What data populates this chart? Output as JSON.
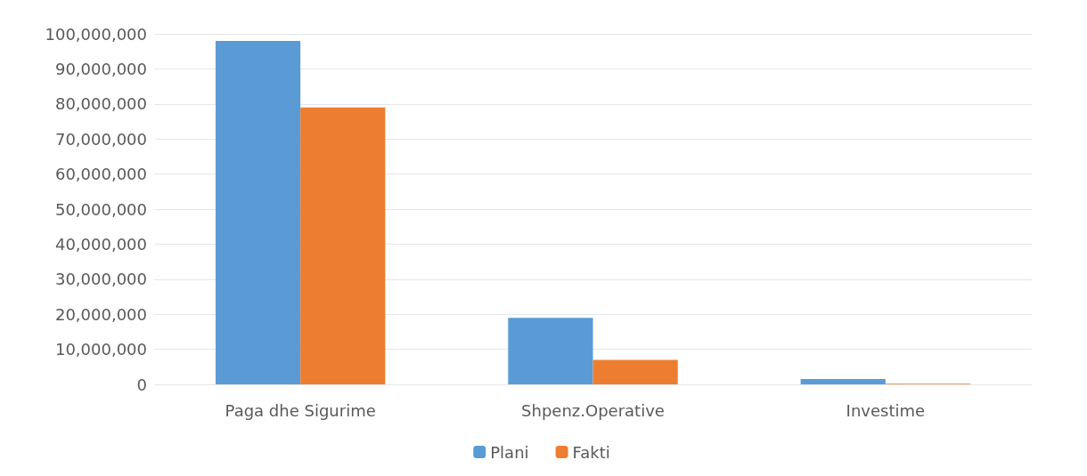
{
  "chart_data": {
    "type": "bar",
    "categories": [
      "Paga dhe Sigurime",
      "Shpenz.Operative",
      "Investime"
    ],
    "series": [
      {
        "name": "Plani",
        "color": "#5b9bd5",
        "values": [
          98000000,
          19000000,
          1500000
        ]
      },
      {
        "name": "Fakti",
        "color": "#ed7d31",
        "values": [
          79000000,
          7000000,
          200000
        ]
      }
    ],
    "ylim": [
      0,
      100000000
    ],
    "yticks": [
      {
        "value": 0,
        "label": "0"
      },
      {
        "value": 10000000,
        "label": "10,000,000"
      },
      {
        "value": 20000000,
        "label": "20,000,000"
      },
      {
        "value": 30000000,
        "label": "30,000,000"
      },
      {
        "value": 40000000,
        "label": "40,000,000"
      },
      {
        "value": 50000000,
        "label": "50,000,000"
      },
      {
        "value": 60000000,
        "label": "60,000,000"
      },
      {
        "value": 70000000,
        "label": "70,000,000"
      },
      {
        "value": 80000000,
        "label": "80,000,000"
      },
      {
        "value": 90000000,
        "label": "90,000,000"
      },
      {
        "value": 100000000,
        "label": "100,000,000"
      }
    ],
    "grid": "y",
    "legend": "bottom"
  }
}
